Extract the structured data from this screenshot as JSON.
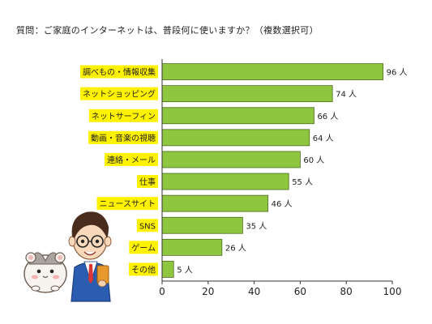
{
  "question": "質問：ご家庭のインターネットは、普段何に使いますか？（複数選択可）",
  "colors": {
    "bar_fill": "#8fc63f",
    "bar_stroke": "#4a6d1e",
    "label_bg": "#fff200",
    "axis": "#333333"
  },
  "chart_data": {
    "type": "bar",
    "orientation": "horizontal",
    "categories": [
      "調べもの・情報収集",
      "ネットショッピング",
      "ネットサーフィン",
      "動画・音楽の視聴",
      "連絡・メール",
      "仕事",
      "ニュースサイト",
      "SNS",
      "ゲーム",
      "その他"
    ],
    "values": [
      96,
      74,
      66,
      64,
      60,
      55,
      46,
      35,
      26,
      5
    ],
    "value_labels": [
      "96 人",
      "74 人",
      "66 人",
      "64 人",
      "60 人",
      "55 人",
      "46 人",
      "35 人",
      "26 人",
      "5 人"
    ],
    "xlim": [
      0,
      100
    ],
    "xticks": [
      0,
      20,
      40,
      60,
      80,
      100
    ],
    "xtick_labels": [
      "0",
      "20",
      "40",
      "60",
      "80",
      "100"
    ],
    "grid": false,
    "legend": "none"
  },
  "illustration": {
    "mascots": [
      "hamster-mascot-icon",
      "businessman-mascot-icon"
    ]
  }
}
